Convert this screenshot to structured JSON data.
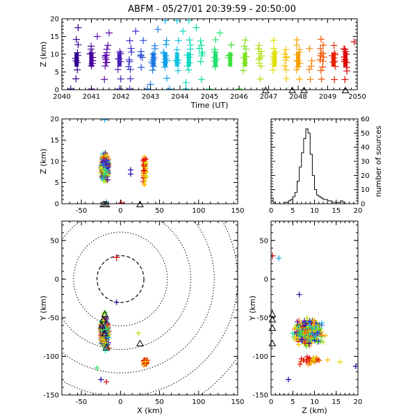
{
  "title": "ABFM - 05/27/01 20:39:59 - 20:50:00",
  "chart_data": [
    {
      "id": "time-height",
      "type": "scatter",
      "xlabel": "Time (UT)",
      "ylabel": "Z (km)",
      "xlim": [
        2040,
        2050
      ],
      "ylim": [
        0,
        20
      ],
      "xticks": [
        "2040",
        "2041",
        "2042",
        "2043",
        "2044",
        "2045",
        "2046",
        "2047",
        "2048",
        "2049",
        "2050"
      ],
      "yticks": [
        "0",
        "5",
        "10",
        "15",
        "20"
      ],
      "ground_stations_x": [
        2046.9,
        2047.8,
        2048.2,
        2049.6
      ],
      "time_slices": [
        {
          "t": 2040.5,
          "color": "#30008c"
        },
        {
          "t": 2041.0,
          "color": "#45009c"
        },
        {
          "t": 2041.5,
          "color": "#5a0aaa"
        },
        {
          "t": 2041.95,
          "color": "#4a20b8"
        },
        {
          "t": 2042.3,
          "color": "#3a30c8"
        },
        {
          "t": 2042.7,
          "color": "#2a50d8"
        },
        {
          "t": 2043.1,
          "color": "#1a78e0"
        },
        {
          "t": 2043.5,
          "color": "#10a0e8"
        },
        {
          "t": 2043.9,
          "color": "#10c0e0"
        },
        {
          "t": 2044.3,
          "color": "#10d8c0"
        },
        {
          "t": 2044.7,
          "color": "#10e0a0"
        },
        {
          "t": 2045.2,
          "color": "#20e070"
        },
        {
          "t": 2045.7,
          "color": "#40e040"
        },
        {
          "t": 2046.2,
          "color": "#80e020"
        },
        {
          "t": 2046.7,
          "color": "#b0e010"
        },
        {
          "t": 2047.2,
          "color": "#e0e000"
        },
        {
          "t": 2047.6,
          "color": "#f8c000"
        },
        {
          "t": 2048.0,
          "color": "#f8a000"
        },
        {
          "t": 2048.4,
          "color": "#f88000"
        },
        {
          "t": 2048.8,
          "color": "#f05000"
        },
        {
          "t": 2049.2,
          "color": "#e82000"
        },
        {
          "t": 2049.6,
          "color": "#e00000"
        }
      ],
      "z_values": [
        3,
        5.5,
        6.5,
        7.5,
        8,
        8.5,
        9,
        9.5,
        10,
        10.5,
        11.5,
        12.5,
        14
      ],
      "outliers": [
        {
          "t": 2040.55,
          "z": 17.5,
          "color": "#30008c"
        },
        {
          "t": 2041.2,
          "z": 15,
          "color": "#5a0aaa"
        },
        {
          "t": 2041.6,
          "z": 16,
          "color": "#5a0aaa"
        },
        {
          "t": 2042.5,
          "z": 16.5,
          "color": "#3a30c8"
        },
        {
          "t": 2043.25,
          "z": 17,
          "color": "#1a78e0"
        },
        {
          "t": 2043.5,
          "z": 19.5,
          "color": "#10a0e8"
        },
        {
          "t": 2043.9,
          "z": 19.5,
          "color": "#10c0e0"
        },
        {
          "t": 2044.1,
          "z": 16.5,
          "color": "#10d8c0"
        },
        {
          "t": 2044.3,
          "z": 19.5,
          "color": "#10d8c0"
        },
        {
          "t": 2044.55,
          "z": 17.5,
          "color": "#10e0a0"
        },
        {
          "t": 2045.35,
          "z": 16,
          "color": "#20e070"
        },
        {
          "t": 2043.0,
          "z": 1.5,
          "color": "#1a78e0"
        },
        {
          "t": 2044.2,
          "z": 2,
          "color": "#10d8c0"
        },
        {
          "t": 2040.3,
          "z": 0.2,
          "color": "#30008c"
        },
        {
          "t": 2041.0,
          "z": 0.2,
          "color": "#45009c"
        },
        {
          "t": 2041.95,
          "z": 0.2,
          "color": "#4a20b8"
        },
        {
          "t": 2042.3,
          "z": 0.2,
          "color": "#3a30c8"
        },
        {
          "t": 2042.9,
          "z": 0.2,
          "color": "#1a78e0"
        },
        {
          "t": 2043.65,
          "z": 0.2,
          "color": "#10a0e8"
        },
        {
          "t": 2044.2,
          "z": 0.2,
          "color": "#10c0e0"
        },
        {
          "t": 2045.0,
          "z": 0.2,
          "color": "#20e070"
        },
        {
          "t": 2046.0,
          "z": 0.2,
          "color": "#40e040"
        },
        {
          "t": 2047.15,
          "z": 5.5,
          "color": "#e0e000"
        },
        {
          "t": 2049.55,
          "z": 11.5,
          "color": "#e00000"
        },
        {
          "t": 2049.9,
          "z": 13.5,
          "color": "#e00000"
        }
      ]
    },
    {
      "id": "xz-panel",
      "type": "scatter",
      "xlabel": "",
      "ylabel": "Z (km)",
      "xlim": [
        -75,
        150
      ],
      "ylim": [
        0,
        20
      ],
      "xticks": [
        "-50",
        "0",
        "50",
        "100",
        "150"
      ],
      "yticks": [
        "0",
        "5",
        "10",
        "15",
        "20"
      ],
      "ground_stations_x": [
        -22,
        -20,
        -18,
        25
      ]
    },
    {
      "id": "histogram",
      "type": "bar",
      "xlabel": "",
      "ylabel": "number of sources",
      "xlim": [
        0,
        20
      ],
      "ylim": [
        0,
        60
      ],
      "xticks": [
        "0",
        "5",
        "10",
        "15",
        "20"
      ],
      "yticks": [
        "0",
        "10",
        "20",
        "30",
        "40",
        "50",
        "60"
      ],
      "bins_z": [
        0,
        0.5,
        1,
        1.5,
        2,
        2.5,
        3,
        3.5,
        4,
        4.5,
        5,
        5.5,
        6,
        6.5,
        7,
        7.5,
        8,
        8.5,
        9,
        9.5,
        10,
        10.5,
        11,
        11.5,
        12,
        12.5,
        13,
        13.5,
        14,
        14.5,
        15,
        15.5,
        16,
        16.5,
        17,
        17.5,
        18,
        18.5,
        19,
        19.5
      ],
      "counts": [
        4,
        1,
        0,
        0,
        0,
        0,
        1,
        1,
        2,
        3,
        5,
        8,
        16,
        26,
        36,
        46,
        53,
        50,
        35,
        20,
        10,
        6,
        5,
        4,
        3,
        3,
        2,
        2,
        1,
        1,
        1,
        1,
        2,
        1,
        0,
        0,
        0,
        0,
        0,
        0
      ]
    },
    {
      "id": "plan-view",
      "type": "scatter",
      "xlabel": "X (km)",
      "ylabel": "Y (km)",
      "xlim": [
        -75,
        150
      ],
      "ylim": [
        -150,
        75
      ],
      "xticks": [
        "-50",
        "0",
        "50",
        "100",
        "150"
      ],
      "yticks": [
        "-150",
        "-100",
        "-50",
        "0",
        "50"
      ],
      "range_ring_radii_km": [
        30,
        60,
        90,
        120,
        150,
        180
      ],
      "ground_stations": [
        [
          -20,
          -45
        ],
        [
          -22,
          -52
        ],
        [
          -20,
          -70
        ],
        [
          25,
          -83
        ],
        [
          -18,
          -88
        ],
        [
          -24,
          -60
        ]
      ]
    },
    {
      "id": "yz-panel",
      "type": "scatter",
      "xlabel": "Z (km)",
      "ylabel": "Y (km)",
      "xlim": [
        0,
        20
      ],
      "ylim": [
        -150,
        75
      ],
      "xticks": [
        "0",
        "5",
        "10",
        "15",
        "20"
      ],
      "yticks": [
        "-150",
        "-100",
        "-50",
        "0",
        "50"
      ],
      "ground_stations": [
        [
          0.3,
          -45
        ],
        [
          0.3,
          -52
        ],
        [
          0.3,
          -63
        ],
        [
          0.3,
          -83
        ]
      ]
    }
  ]
}
